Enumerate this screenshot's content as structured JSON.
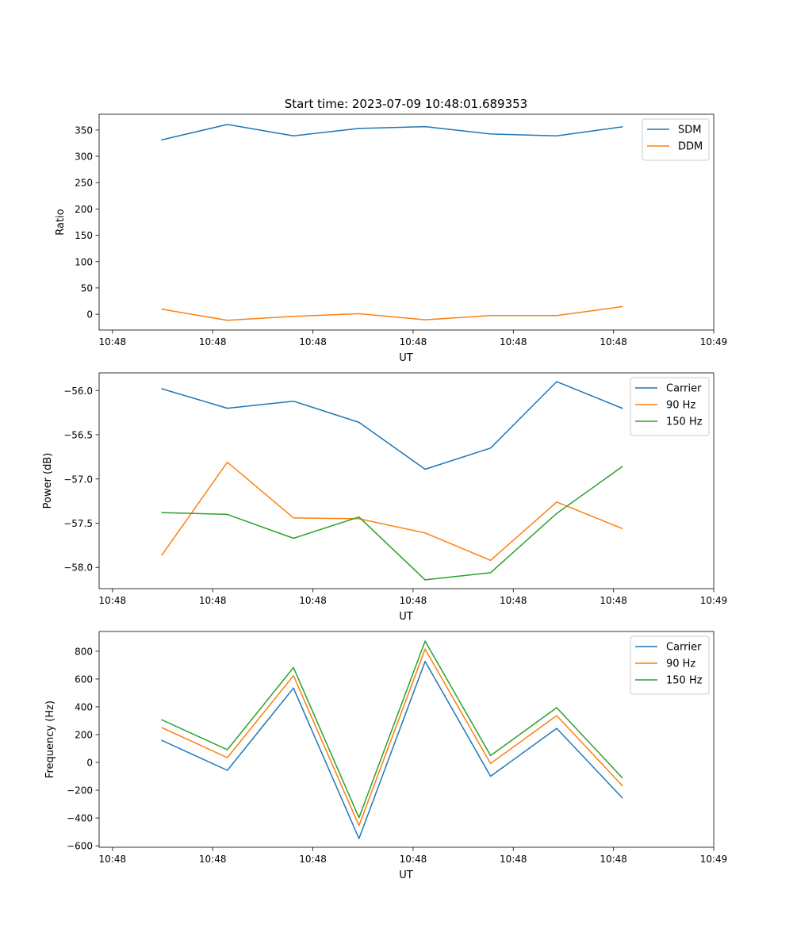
{
  "figure": {
    "title": "Start time: 2023-07-09 10:48:01.689353"
  },
  "chart_data": [
    {
      "type": "line",
      "title": "",
      "xlabel": "UT",
      "ylabel": "Ratio",
      "ylim": [
        -30,
        380
      ],
      "yticks": [
        0,
        50,
        100,
        150,
        200,
        250,
        300,
        350
      ],
      "ytick_labels": [
        "0",
        "50",
        "100",
        "150",
        "200",
        "250",
        "300",
        "350"
      ],
      "xlim": [
        -0.2,
        9
      ],
      "xticks": [
        0,
        1.5,
        3,
        4.5,
        6,
        7.5,
        9
      ],
      "xtick_labels": [
        "10:48",
        "10:48",
        "10:48",
        "10:48",
        "10:48",
        "10:48",
        "10:49"
      ],
      "x": [
        0.74,
        1.72,
        2.71,
        3.69,
        4.68,
        5.66,
        6.65,
        7.63
      ],
      "legend": "top-right",
      "series": [
        {
          "name": "SDM",
          "color": "#1f77b4",
          "values": [
            331.5,
            360.5,
            339,
            353,
            356.5,
            342.5,
            339,
            356
          ]
        },
        {
          "name": "DDM",
          "color": "#ff7f0e",
          "values": [
            9.5,
            -11.5,
            -4,
            1,
            -10.5,
            -2.5,
            -2.5,
            14.5
          ]
        }
      ]
    },
    {
      "type": "line",
      "title": "",
      "xlabel": "UT",
      "ylabel": "Power (dB)",
      "ylim": [
        -58.24,
        -55.8
      ],
      "yticks": [
        -56.0,
        -56.5,
        -57.0,
        -57.5,
        -58.0
      ],
      "ytick_labels": [
        "−56.0",
        "−56.5",
        "−57.0",
        "−57.5",
        "−58.0"
      ],
      "xlim": [
        -0.2,
        9
      ],
      "xticks": [
        0,
        1.5,
        3,
        4.5,
        6,
        7.5,
        9
      ],
      "xtick_labels": [
        "10:48",
        "10:48",
        "10:48",
        "10:48",
        "10:48",
        "10:48",
        "10:49"
      ],
      "x": [
        0.74,
        1.72,
        2.71,
        3.69,
        4.68,
        5.66,
        6.65,
        7.63
      ],
      "legend": "top-right",
      "series": [
        {
          "name": "Carrier",
          "color": "#1f77b4",
          "values": [
            -55.98,
            -56.2,
            -56.12,
            -56.36,
            -56.89,
            -56.65,
            -55.9,
            -56.2
          ]
        },
        {
          "name": "90 Hz",
          "color": "#ff7f0e",
          "values": [
            -57.86,
            -56.81,
            -57.44,
            -57.45,
            -57.61,
            -57.92,
            -57.26,
            -57.56
          ]
        },
        {
          "name": "150 Hz",
          "color": "#2ca02c",
          "values": [
            -57.38,
            -57.4,
            -57.67,
            -57.43,
            -58.14,
            -58.06,
            -57.39,
            -56.86
          ]
        }
      ]
    },
    {
      "type": "line",
      "title": "",
      "xlabel": "UT",
      "ylabel": "Frequency (Hz)",
      "ylim": [
        -611,
        942
      ],
      "yticks": [
        -600,
        -400,
        -200,
        0,
        200,
        400,
        600,
        800
      ],
      "ytick_labels": [
        "−600",
        "−400",
        "−200",
        "0",
        "200",
        "400",
        "600",
        "800"
      ],
      "xlim": [
        -0.2,
        9
      ],
      "xticks": [
        0,
        1.5,
        3,
        4.5,
        6,
        7.5,
        9
      ],
      "xtick_labels": [
        "10:48",
        "10:48",
        "10:48",
        "10:48",
        "10:48",
        "10:48",
        "10:49"
      ],
      "x": [
        0.74,
        1.72,
        2.71,
        3.69,
        4.68,
        5.66,
        6.65,
        7.63
      ],
      "legend": "top-right",
      "series": [
        {
          "name": "Carrier",
          "color": "#1f77b4",
          "values": [
            158,
            -57,
            535,
            -548,
            727,
            -100,
            245,
            -255
          ]
        },
        {
          "name": "90 Hz",
          "color": "#ff7f0e",
          "values": [
            250,
            34,
            624,
            -455,
            815,
            -8,
            337,
            -167
          ]
        },
        {
          "name": "150 Hz",
          "color": "#2ca02c",
          "values": [
            306,
            91,
            682,
            -398,
            873,
            49,
            394,
            -110
          ]
        }
      ]
    }
  ]
}
